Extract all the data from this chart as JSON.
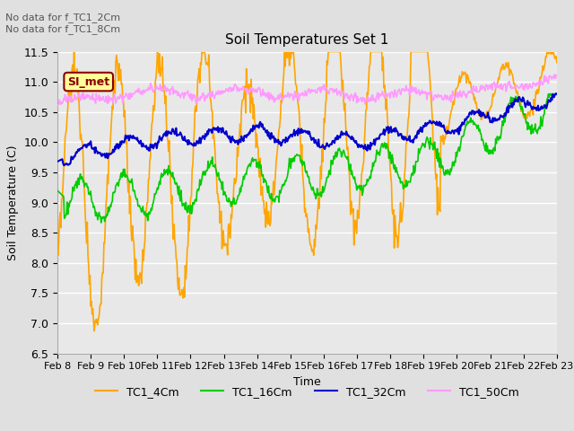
{
  "title": "Soil Temperatures Set 1",
  "xlabel": "Time",
  "ylabel": "Soil Temperature (C)",
  "ylim": [
    6.5,
    11.5
  ],
  "annotation_text": "No data for f_TC1_2Cm\nNo data for f_TC1_8Cm",
  "annotation_box": "SI_met",
  "x_tick_labels": [
    "Feb 8",
    "Feb 9",
    "Feb 10",
    "Feb 11",
    "Feb 12",
    "Feb 13",
    "Feb 14",
    "Feb 15",
    "Feb 16",
    "Feb 17",
    "Feb 18",
    "Feb 19",
    "Feb 20",
    "Feb 21",
    "Feb 22",
    "Feb 23"
  ],
  "background_color": "#e0e0e0",
  "plot_bg_color": "#e8e8e8",
  "grid_color": "#ffffff",
  "colors": {
    "TC1_4Cm": "#FFA500",
    "TC1_16Cm": "#00CC00",
    "TC1_32Cm": "#0000CC",
    "TC1_50Cm": "#FF99FF"
  },
  "legend_entries": [
    "TC1_4Cm",
    "TC1_16Cm",
    "TC1_32Cm",
    "TC1_50Cm"
  ]
}
